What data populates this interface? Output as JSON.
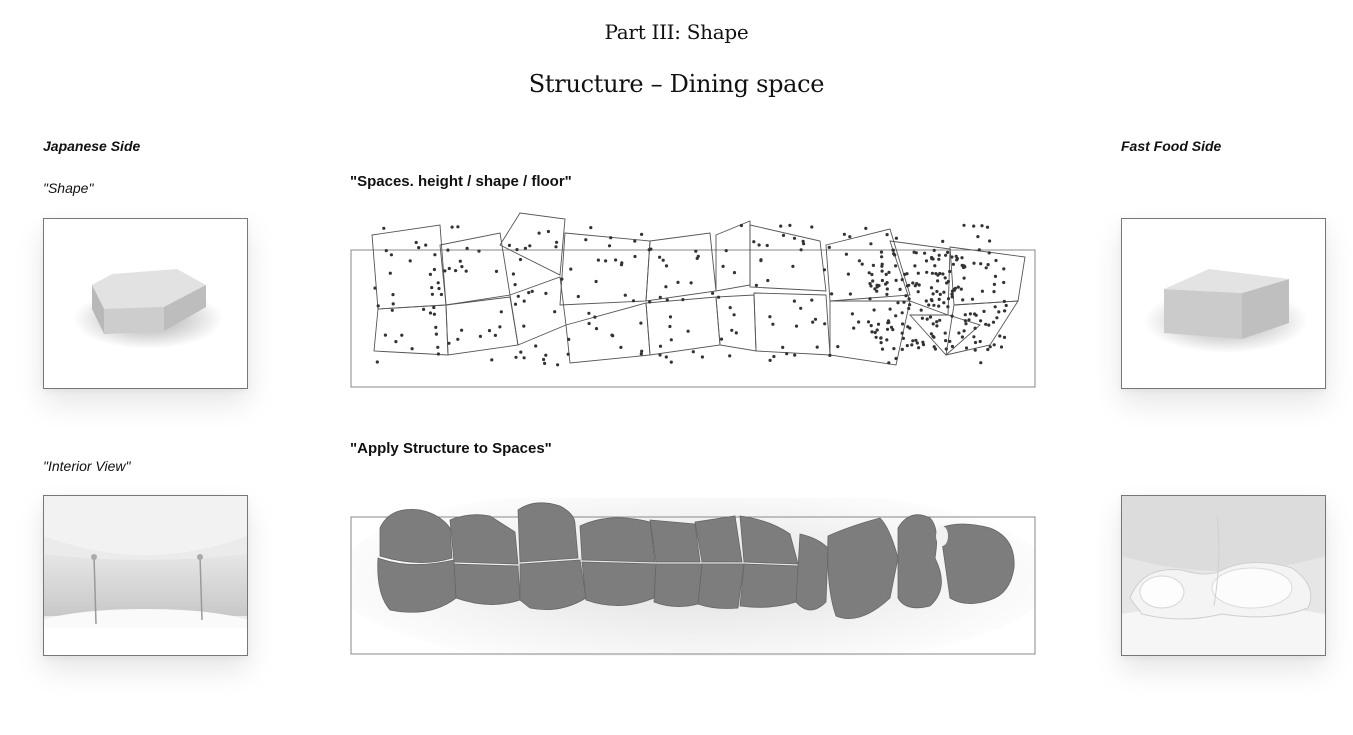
{
  "header": {
    "pretitle": "Part III: Shape",
    "title": "Structure – Dining space"
  },
  "left": {
    "side_label": "Japanese Side",
    "shape_caption": "\"Shape\"",
    "interior_caption": "\"Interior View\""
  },
  "right": {
    "side_label": "Fast Food Side"
  },
  "center": {
    "spaces_heading": "\"Spaces. height / shape / floor\"",
    "structure_heading": "\"Apply Structure to Spaces\""
  }
}
